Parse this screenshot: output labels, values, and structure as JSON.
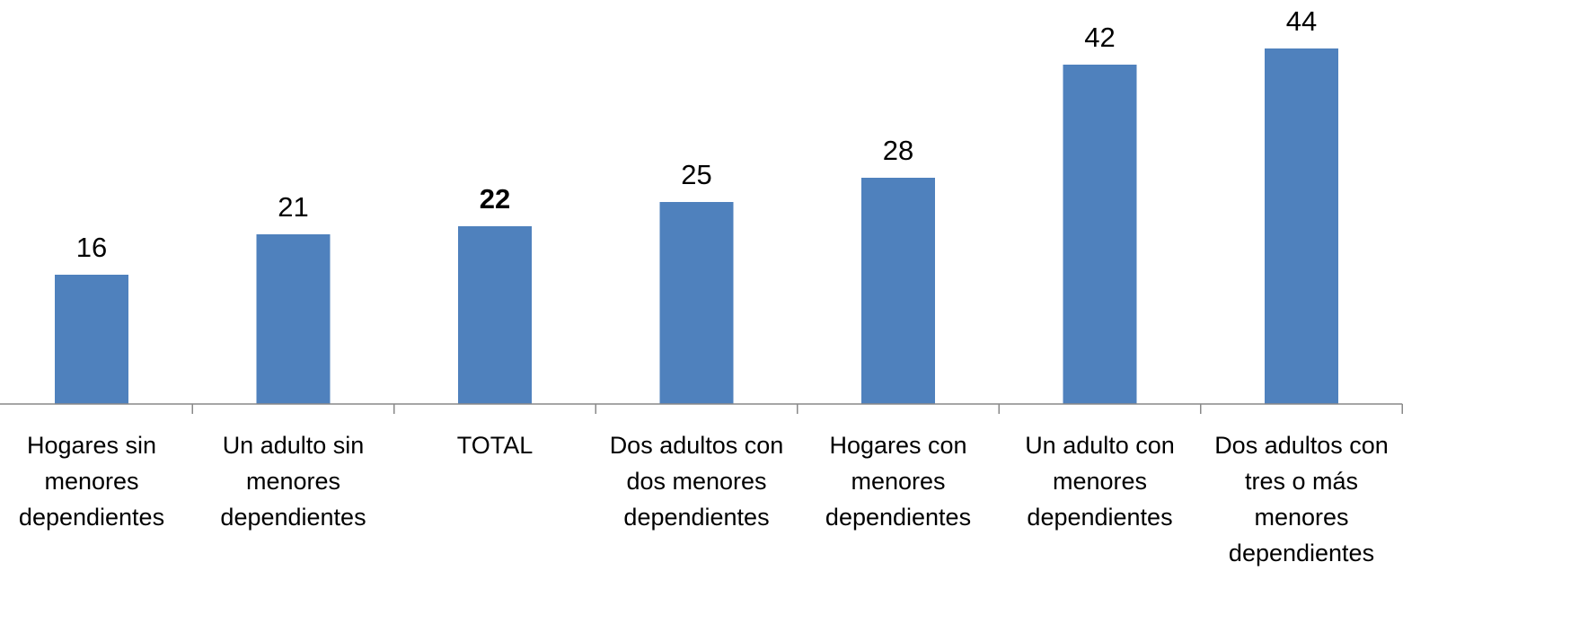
{
  "chart_data": {
    "type": "bar",
    "categories": [
      "Hogares sin menores dependientes",
      "Un adulto sin menores dependientes",
      "TOTAL",
      "Dos adultos con dos menores dependientes",
      "Hogares con menores dependientes",
      "Un adulto con menores dependientes",
      "Dos adultos con tres o más menores dependientes"
    ],
    "values": [
      16,
      21,
      22,
      25,
      28,
      42,
      44
    ],
    "color": "#4f81bd",
    "ylim": [
      0,
      50
    ]
  }
}
